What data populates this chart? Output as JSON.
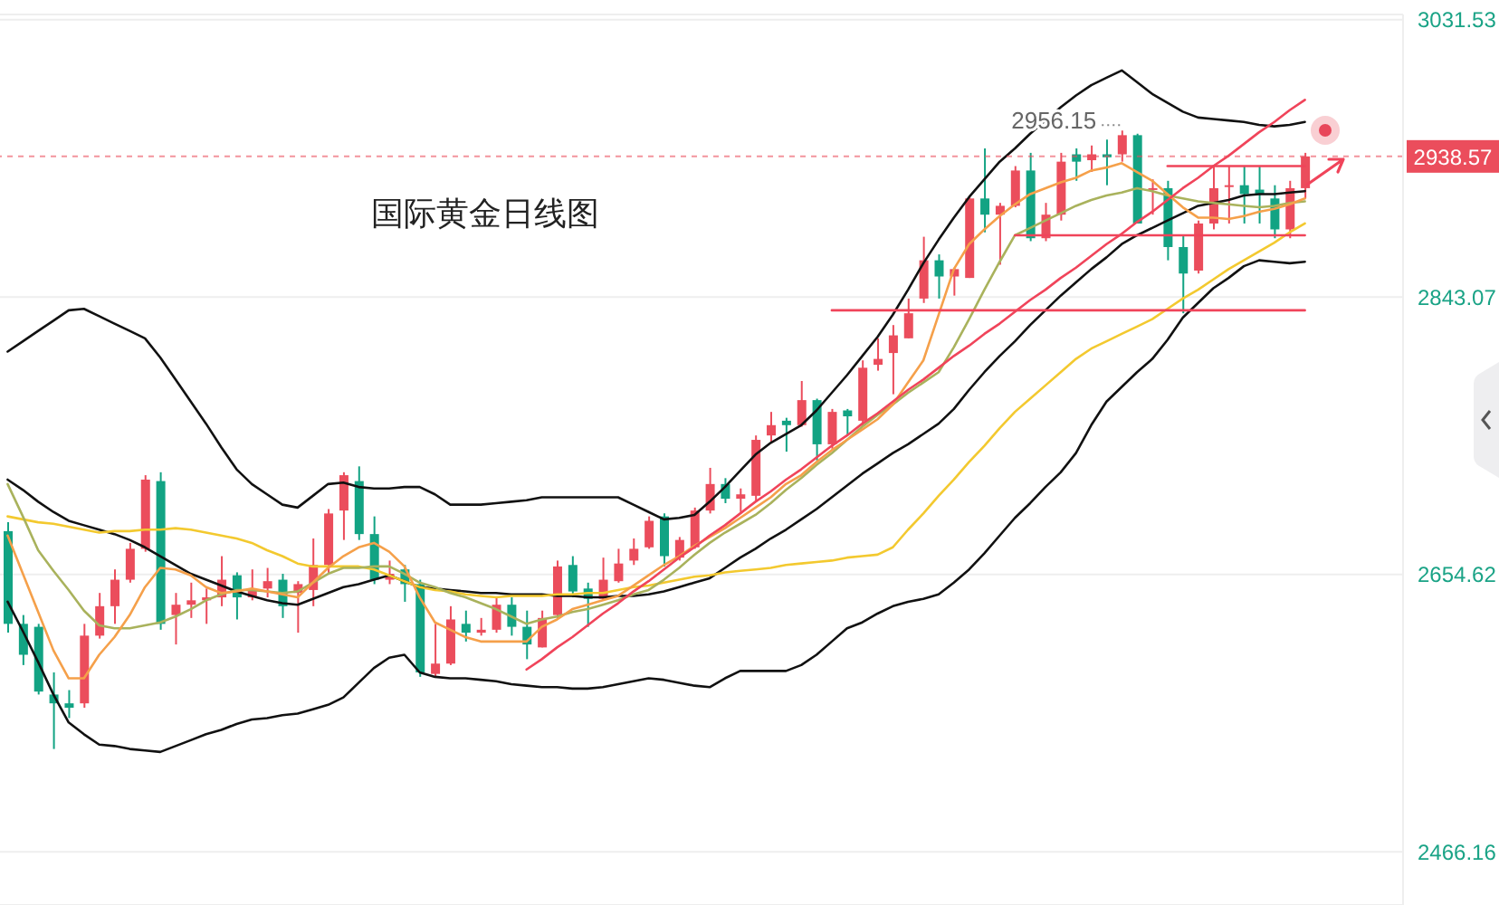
{
  "chart_data": {
    "type": "candlestick",
    "title": "国际黄金日线图",
    "categories": [
      null,
      null,
      null,
      null,
      null,
      null,
      null,
      null,
      null,
      null,
      null,
      null,
      null,
      null,
      null,
      null,
      null,
      null,
      null,
      null,
      null,
      null,
      null,
      null,
      null,
      null,
      null,
      null,
      null,
      null,
      null,
      null,
      null,
      null,
      null,
      null,
      null,
      null,
      null,
      null,
      null,
      null,
      null,
      null,
      null,
      null,
      null,
      null,
      null,
      null,
      null,
      null,
      null,
      null,
      null,
      null,
      null,
      null,
      null,
      null,
      null,
      null,
      null,
      null,
      null,
      null,
      null,
      null,
      null,
      null,
      null,
      null,
      null,
      null,
      null,
      null,
      null,
      null,
      null,
      null,
      null,
      null,
      null,
      null,
      null,
      null
    ],
    "ohlc": [
      [
        2684,
        2690,
        2615,
        2621
      ],
      [
        2621,
        2627,
        2593,
        2600
      ],
      [
        2619,
        2621,
        2573,
        2575
      ],
      [
        2573,
        2588,
        2536,
        2567
      ],
      [
        2567,
        2576,
        2557,
        2564
      ],
      [
        2567,
        2621,
        2564,
        2613
      ],
      [
        2613,
        2642,
        2611,
        2633
      ],
      [
        2633,
        2658,
        2621,
        2651
      ],
      [
        2651,
        2676,
        2649,
        2672
      ],
      [
        2672,
        2722,
        2670,
        2719
      ],
      [
        2718,
        2724,
        2617,
        2621
      ],
      [
        2627,
        2642,
        2607,
        2634
      ],
      [
        2634,
        2649,
        2625,
        2637
      ],
      [
        2637,
        2645,
        2621,
        2639
      ],
      [
        2639,
        2667,
        2633,
        2651
      ],
      [
        2654,
        2656,
        2624,
        2639
      ],
      [
        2639,
        2658,
        2637,
        2645
      ],
      [
        2645,
        2659,
        2639,
        2650
      ],
      [
        2651,
        2655,
        2625,
        2633
      ],
      [
        2642,
        2650,
        2615,
        2648
      ],
      [
        2644,
        2679,
        2633,
        2661
      ],
      [
        2661,
        2699,
        2655,
        2696
      ],
      [
        2698,
        2724,
        2678,
        2722
      ],
      [
        2718,
        2728,
        2678,
        2682
      ],
      [
        2682,
        2694,
        2648,
        2651
      ],
      [
        2651,
        2664,
        2648,
        2655
      ],
      [
        2658,
        2661,
        2636,
        2648
      ],
      [
        2648,
        2651,
        2585,
        2588
      ],
      [
        2587,
        2621,
        2585,
        2594
      ],
      [
        2594,
        2633,
        2593,
        2624
      ],
      [
        2621,
        2630,
        2609,
        2615
      ],
      [
        2615,
        2625,
        2613,
        2617
      ],
      [
        2617,
        2639,
        2615,
        2634
      ],
      [
        2634,
        2639,
        2613,
        2619
      ],
      [
        2619,
        2630,
        2597,
        2607
      ],
      [
        2605,
        2630,
        2605,
        2625
      ],
      [
        2627,
        2664,
        2625,
        2660
      ],
      [
        2661,
        2667,
        2639,
        2643
      ],
      [
        2645,
        2649,
        2619,
        2638
      ],
      [
        2638,
        2666,
        2637,
        2651
      ],
      [
        2650,
        2672,
        2649,
        2662
      ],
      [
        2664,
        2679,
        2661,
        2672
      ],
      [
        2673,
        2694,
        2672,
        2691
      ],
      [
        2694,
        2696,
        2660,
        2667
      ],
      [
        2666,
        2680,
        2664,
        2678
      ],
      [
        2673,
        2700,
        2672,
        2698
      ],
      [
        2698,
        2727,
        2696,
        2716
      ],
      [
        2716,
        2720,
        2703,
        2706
      ],
      [
        2706,
        2713,
        2697,
        2709
      ],
      [
        2708,
        2749,
        2704,
        2746
      ],
      [
        2749,
        2765,
        2744,
        2756
      ],
      [
        2759,
        2761,
        2738,
        2756
      ],
      [
        2756,
        2786,
        2755,
        2773
      ],
      [
        2773,
        2774,
        2732,
        2743
      ],
      [
        2743,
        2767,
        2740,
        2765
      ],
      [
        2766,
        2767,
        2749,
        2762
      ],
      [
        2759,
        2800,
        2756,
        2795
      ],
      [
        2797,
        2815,
        2793,
        2801
      ],
      [
        2805,
        2824,
        2777,
        2817
      ],
      [
        2815,
        2842,
        2815,
        2832
      ],
      [
        2842,
        2884,
        2839,
        2868
      ],
      [
        2868,
        2872,
        2842,
        2857
      ],
      [
        2857,
        2863,
        2844,
        2862
      ],
      [
        2856,
        2911,
        2856,
        2910
      ],
      [
        2910,
        2944,
        2887,
        2899
      ],
      [
        2899,
        2907,
        2865,
        2905
      ],
      [
        2905,
        2932,
        2904,
        2929
      ],
      [
        2929,
        2941,
        2881,
        2883
      ],
      [
        2883,
        2907,
        2881,
        2899
      ],
      [
        2899,
        2941,
        2895,
        2935
      ],
      [
        2940,
        2944,
        2922,
        2935
      ],
      [
        2936,
        2946,
        2928,
        2940
      ],
      [
        2940,
        2950,
        2919,
        2938
      ],
      [
        2940,
        2956.15,
        2935,
        2953
      ],
      [
        2953,
        2954,
        2893,
        2893
      ],
      [
        2916,
        2923,
        2899,
        2917
      ],
      [
        2917,
        2922,
        2868,
        2877
      ],
      [
        2877,
        2885,
        2832,
        2859
      ],
      [
        2861,
        2895,
        2859,
        2893
      ],
      [
        2893,
        2932,
        2889,
        2917
      ],
      [
        2918,
        2932,
        2893,
        2919
      ],
      [
        2919,
        2932,
        2893,
        2913
      ],
      [
        2916,
        2932,
        2893,
        2913
      ],
      [
        2910,
        2919,
        2883,
        2889
      ],
      [
        2889,
        2922,
        2883,
        2917
      ],
      [
        2917,
        2941,
        2910,
        2938.57
      ]
    ],
    "colors": [
      "#12a383",
      "#12a383",
      "#12a383",
      "#12a383",
      "#12a383",
      "#eb4d5c",
      "#eb4d5c",
      "#eb4d5c",
      "#eb4d5c",
      "#eb4d5c",
      "#12a383",
      "#eb4d5c",
      "#eb4d5c",
      "#eb4d5c",
      "#eb4d5c",
      "#12a383",
      "#eb4d5c",
      "#eb4d5c",
      "#12a383",
      "#eb4d5c",
      "#eb4d5c",
      "#eb4d5c",
      "#eb4d5c",
      "#12a383",
      "#12a383",
      "#eb4d5c",
      "#12a383",
      "#12a383",
      "#eb4d5c",
      "#eb4d5c",
      "#12a383",
      "#eb4d5c",
      "#eb4d5c",
      "#12a383",
      "#12a383",
      "#eb4d5c",
      "#eb4d5c",
      "#12a383",
      "#12a383",
      "#eb4d5c",
      "#eb4d5c",
      "#eb4d5c",
      "#eb4d5c",
      "#12a383",
      "#eb4d5c",
      "#eb4d5c",
      "#eb4d5c",
      "#12a383",
      "#eb4d5c",
      "#eb4d5c",
      "#eb4d5c",
      "#12a383",
      "#eb4d5c",
      "#12a383",
      "#eb4d5c",
      "#12a383",
      "#eb4d5c",
      "#eb4d5c",
      "#eb4d5c",
      "#eb4d5c",
      "#eb4d5c",
      "#12a383",
      "#eb4d5c",
      "#eb4d5c",
      "#12a383",
      "#eb4d5c",
      "#eb4d5c",
      "#12a383",
      "#eb4d5c",
      "#eb4d5c",
      "#12a383",
      "#eb4d5c",
      "#12a383",
      "#eb4d5c",
      "#12a383",
      "#eb4d5c",
      "#12a383",
      "#12a383",
      "#eb4d5c",
      "#eb4d5c",
      "#eb4d5c",
      "#12a383",
      "#12a383",
      "#12a383",
      "#eb4d5c",
      "#eb4d5c"
    ],
    "series": [
      {
        "type": "line",
        "color": "#111111",
        "values": [
          2806,
          2813,
          2820,
          2827,
          2834,
          2835,
          2830,
          2825,
          2820,
          2815,
          2802,
          2787,
          2772,
          2757,
          2741,
          2726,
          2716,
          2709,
          2702,
          2700,
          2708,
          2716,
          2717,
          2714,
          2713,
          2713,
          2714,
          2714,
          2709,
          2702,
          2702,
          2702,
          2703,
          2704,
          2705,
          2707,
          2707,
          2707,
          2707,
          2707,
          2707,
          2702,
          2697,
          2692,
          2693,
          2695,
          2704,
          2714,
          2725,
          2736,
          2744,
          2750,
          2756,
          2766,
          2778,
          2790,
          2803,
          2816,
          2831,
          2848,
          2866,
          2882,
          2897,
          2911,
          2923,
          2935,
          2944,
          2954,
          2963,
          2972,
          2980,
          2987,
          2992,
          2997,
          2989,
          2981,
          2975,
          2969,
          2965,
          2964,
          2963,
          2962,
          2960,
          2959,
          2960,
          2962
        ]
      },
      {
        "type": "line",
        "color": "#111111",
        "values": [
          2719,
          2712,
          2704,
          2697,
          2691,
          2688,
          2685,
          2682,
          2678,
          2673,
          2667,
          2661,
          2655,
          2651,
          2647,
          2643,
          2640,
          2637,
          2635,
          2634,
          2638,
          2642,
          2646,
          2648,
          2651,
          2654,
          2650,
          2646,
          2645,
          2644,
          2643,
          2642,
          2642,
          2641,
          2641,
          2641,
          2640,
          2640,
          2639,
          2639,
          2640,
          2640,
          2641,
          2643,
          2646,
          2649,
          2652,
          2659,
          2666,
          2672,
          2679,
          2685,
          2692,
          2699,
          2707,
          2715,
          2723,
          2730,
          2737,
          2743,
          2750,
          2757,
          2767,
          2780,
          2792,
          2803,
          2813,
          2824,
          2834,
          2844,
          2853,
          2862,
          2870,
          2879,
          2885,
          2890,
          2895,
          2900,
          2905,
          2907,
          2909,
          2912,
          2913,
          2913,
          2914,
          2915
        ]
      },
      {
        "type": "line",
        "color": "#111111",
        "values": [
          2636,
          2616,
          2595,
          2573,
          2554,
          2546,
          2539,
          2538,
          2536,
          2535,
          2534,
          2538,
          2542,
          2546,
          2549,
          2553,
          2556,
          2557,
          2559,
          2560,
          2563,
          2566,
          2571,
          2581,
          2591,
          2598,
          2600,
          2588,
          2585,
          2584,
          2584,
          2583,
          2582,
          2580,
          2579,
          2578,
          2578,
          2577,
          2577,
          2578,
          2580,
          2582,
          2584,
          2583,
          2581,
          2579,
          2578,
          2584,
          2589,
          2589,
          2589,
          2589,
          2593,
          2600,
          2609,
          2618,
          2622,
          2628,
          2633,
          2636,
          2638,
          2641,
          2649,
          2658,
          2669,
          2681,
          2693,
          2703,
          2714,
          2724,
          2737,
          2756,
          2772,
          2782,
          2792,
          2801,
          2814,
          2829,
          2839,
          2849,
          2856,
          2864,
          2868,
          2867,
          2866,
          2867
        ]
      },
      {
        "type": "line",
        "color": "#f3c92f",
        "values": [
          2694,
          2692,
          2690,
          2689,
          2687,
          2685,
          2683,
          2684,
          2684,
          2685,
          2685,
          2686,
          2685,
          2683,
          2681,
          2679,
          2676,
          2671,
          2667,
          2662,
          2660,
          2660,
          2660,
          2660,
          2658,
          2654,
          2650,
          2646,
          2644,
          2643,
          2641,
          2640,
          2639,
          2640,
          2640,
          2640,
          2641,
          2641,
          2642,
          2642,
          2644,
          2646,
          2647,
          2649,
          2651,
          2653,
          2654,
          2656,
          2657,
          2658,
          2659,
          2661,
          2662,
          2663,
          2664,
          2666,
          2667,
          2668,
          2673,
          2685,
          2696,
          2708,
          2719,
          2731,
          2742,
          2754,
          2765,
          2774,
          2783,
          2792,
          2801,
          2808,
          2813,
          2818,
          2823,
          2828,
          2835,
          2842,
          2848,
          2855,
          2862,
          2868,
          2874,
          2880,
          2887,
          2893
        ]
      },
      {
        "type": "line",
        "color": "#a9b25c",
        "values": [
          2716,
          2694,
          2671,
          2657,
          2644,
          2630,
          2620,
          2618,
          2618,
          2620,
          2622,
          2626,
          2631,
          2637,
          2641,
          2644,
          2644,
          2643,
          2642,
          2643,
          2649,
          2655,
          2659,
          2659,
          2660,
          2660,
          2655,
          2649,
          2646,
          2642,
          2639,
          2635,
          2631,
          2626,
          2621,
          2624,
          2626,
          2629,
          2631,
          2634,
          2637,
          2641,
          2644,
          2651,
          2659,
          2668,
          2676,
          2683,
          2689,
          2695,
          2703,
          2712,
          2720,
          2729,
          2737,
          2746,
          2755,
          2763,
          2770,
          2778,
          2785,
          2792,
          2809,
          2828,
          2848,
          2867,
          2885,
          2890,
          2895,
          2900,
          2905,
          2909,
          2912,
          2914,
          2917,
          2915,
          2912,
          2910,
          2908,
          2907,
          2906,
          2905,
          2904,
          2905,
          2907,
          2908
        ]
      },
      {
        "type": "line",
        "color": "#f5a04a",
        "values": [
          2681,
          2655,
          2629,
          2603,
          2584,
          2584,
          2600,
          2612,
          2627,
          2646,
          2659,
          2658,
          2654,
          2646,
          2642,
          2643,
          2645,
          2643,
          2641,
          2639,
          2649,
          2659,
          2667,
          2673,
          2676,
          2670,
          2660,
          2639,
          2622,
          2617,
          2612,
          2609,
          2609,
          2609,
          2609,
          2619,
          2624,
          2631,
          2634,
          2637,
          2640,
          2647,
          2654,
          2661,
          2667,
          2674,
          2680,
          2686,
          2693,
          2700,
          2707,
          2716,
          2722,
          2731,
          2739,
          2746,
          2753,
          2760,
          2770,
          2785,
          2800,
          2831,
          2862,
          2879,
          2889,
          2898,
          2906,
          2913,
          2917,
          2921,
          2924,
          2929,
          2931,
          2934,
          2928,
          2922,
          2913,
          2904,
          2897,
          2897,
          2896,
          2898,
          2901,
          2903,
          2906,
          2910
        ]
      },
      {
        "type": "line",
        "color": "#f0445a",
        "values": [
          null,
          null,
          null,
          null,
          null,
          null,
          null,
          null,
          null,
          null,
          null,
          null,
          null,
          null,
          null,
          null,
          null,
          null,
          null,
          null,
          null,
          null,
          null,
          null,
          null,
          null,
          null,
          null,
          null,
          null,
          null,
          null,
          null,
          null,
          2590,
          2597,
          2605,
          2612,
          2620,
          2628,
          2635,
          2643,
          2650,
          2658,
          2666,
          2673,
          2681,
          2688,
          2696,
          2704,
          2711,
          2719,
          2726,
          2734,
          2742,
          2749,
          2757,
          2764,
          2772,
          2780,
          2787,
          2795,
          2803,
          2810,
          2818,
          2825,
          2833,
          2841,
          2848,
          2856,
          2863,
          2871,
          2879,
          2886,
          2894,
          2901,
          2909,
          2917,
          2924,
          2932,
          2939,
          2947,
          2955,
          2962,
          2970,
          2977
        ]
      },
      {
        "type": "line",
        "color": "#f0445a",
        "values": [
          null,
          null,
          null,
          null,
          null,
          null,
          null,
          null,
          null,
          null,
          null,
          null,
          null,
          null,
          null,
          null,
          null,
          null,
          null,
          null,
          null,
          null,
          null,
          null,
          null,
          null,
          null,
          null,
          null,
          null,
          null,
          null,
          null,
          null,
          null,
          null,
          null,
          null,
          null,
          null,
          null,
          null,
          null,
          null,
          null,
          null,
          null,
          null,
          null,
          null,
          null,
          null,
          null,
          null,
          null,
          null,
          null,
          null,
          null,
          null,
          null,
          null,
          null,
          null,
          null,
          null,
          null,
          null,
          null,
          null,
          null,
          null,
          null,
          null,
          null,
          null,
          2932,
          2932,
          2932,
          2932,
          2932,
          2932,
          2932,
          2932,
          2932,
          2932
        ]
      },
      {
        "type": "line",
        "color": "#f0445a",
        "values": [
          null,
          null,
          null,
          null,
          null,
          null,
          null,
          null,
          null,
          null,
          null,
          null,
          null,
          null,
          null,
          null,
          null,
          null,
          null,
          null,
          null,
          null,
          null,
          null,
          null,
          null,
          null,
          null,
          null,
          null,
          null,
          null,
          null,
          null,
          null,
          null,
          null,
          null,
          null,
          null,
          null,
          null,
          null,
          null,
          null,
          null,
          null,
          null,
          null,
          null,
          null,
          null,
          null,
          null,
          null,
          null,
          null,
          null,
          null,
          null,
          null,
          null,
          null,
          null,
          null,
          null,
          2885,
          2885,
          2885,
          2885,
          2885,
          2885,
          2885,
          2885,
          2885,
          2885,
          2885,
          2885,
          2885,
          2885,
          2885,
          2885,
          2885,
          2885,
          2885,
          2885
        ]
      },
      {
        "type": "line",
        "color": "#f0445a",
        "values": [
          null,
          null,
          null,
          null,
          null,
          null,
          null,
          null,
          null,
          null,
          null,
          null,
          null,
          null,
          null,
          null,
          null,
          null,
          null,
          null,
          null,
          null,
          null,
          null,
          null,
          null,
          null,
          null,
          null,
          null,
          null,
          null,
          null,
          null,
          null,
          null,
          null,
          null,
          null,
          null,
          null,
          null,
          null,
          null,
          null,
          null,
          null,
          null,
          null,
          null,
          null,
          null,
          null,
          null,
          2834,
          2834,
          2834,
          2834,
          2834,
          2834,
          2834,
          2834,
          2834,
          2834,
          2834,
          2834,
          2834,
          2834,
          2834,
          2834,
          2834,
          2834,
          2834,
          2834,
          2834,
          2834,
          2834,
          2834,
          2834,
          2834,
          2834,
          2834,
          2834,
          2834,
          2834,
          2834
        ]
      }
    ],
    "ylim": [
      2430,
      3035
    ],
    "yticks": [
      3031.53,
      2843.07,
      2654.62,
      2466.16
    ],
    "tick_labels": "y",
    "grid": "y",
    "ref_lines": [
      {
        "axis": "y",
        "value": 2938.57,
        "label": "2938.57",
        "color": "#eb4d5c",
        "line_style": "dashed"
      }
    ],
    "annotations": [
      "2956.15"
    ]
  }
}
